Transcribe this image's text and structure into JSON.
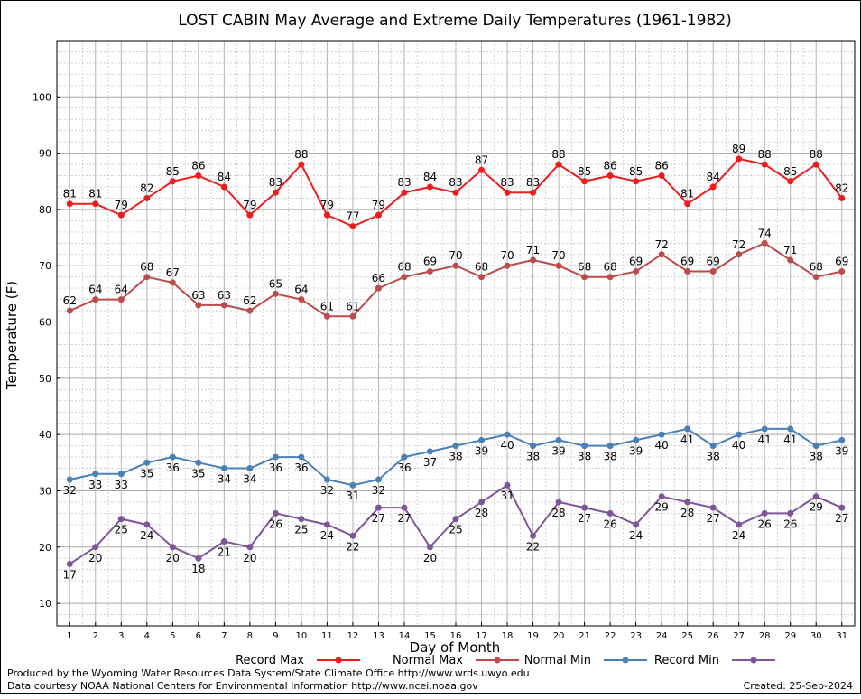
{
  "chart_data": {
    "type": "line",
    "title": "LOST CABIN May Average and Extreme Daily Temperatures (1961-1982)",
    "xlabel": "Day of Month",
    "ylabel": "Temperature (F)",
    "xlim": [
      0.5,
      31.5
    ],
    "ylim": [
      6,
      110
    ],
    "y_ticks": [
      10,
      20,
      30,
      40,
      50,
      60,
      70,
      80,
      90,
      100
    ],
    "x": [
      1,
      2,
      3,
      4,
      5,
      6,
      7,
      8,
      9,
      10,
      11,
      12,
      13,
      14,
      15,
      16,
      17,
      18,
      19,
      20,
      21,
      22,
      23,
      24,
      25,
      26,
      27,
      28,
      29,
      30,
      31
    ],
    "grid": true,
    "legend_position": "bottom",
    "series": [
      {
        "name": "Record Max",
        "color": "#ee1c1c",
        "label_pos": "above",
        "values": [
          81,
          81,
          79,
          82,
          85,
          86,
          84,
          79,
          83,
          88,
          79,
          77,
          79,
          83,
          84,
          83,
          87,
          83,
          83,
          88,
          85,
          86,
          85,
          86,
          81,
          84,
          89,
          88,
          85,
          88,
          82
        ]
      },
      {
        "name": "Normal Max",
        "color": "#bc4b4b",
        "label_pos": "above",
        "values": [
          62,
          64,
          64,
          68,
          67,
          63,
          63,
          62,
          65,
          64,
          61,
          61,
          66,
          68,
          69,
          70,
          68,
          70,
          71,
          70,
          68,
          68,
          69,
          72,
          69,
          69,
          72,
          74,
          71,
          68,
          69
        ]
      },
      {
        "name": "Normal Min",
        "color": "#4a80b8",
        "label_pos": "below",
        "values": [
          32,
          33,
          33,
          35,
          36,
          35,
          34,
          34,
          36,
          36,
          32,
          31,
          32,
          36,
          37,
          38,
          39,
          40,
          38,
          39,
          38,
          38,
          39,
          40,
          41,
          38,
          40,
          41,
          41,
          38,
          39
        ]
      },
      {
        "name": "Record Min",
        "color": "#7e559a",
        "label_pos": "below",
        "values": [
          17,
          20,
          25,
          24,
          20,
          18,
          21,
          20,
          26,
          25,
          24,
          22,
          27,
          27,
          20,
          25,
          28,
          31,
          22,
          28,
          27,
          26,
          24,
          29,
          28,
          27,
          24,
          26,
          26,
          29,
          27
        ]
      }
    ]
  },
  "footer": {
    "producer": "Produced by the Wyoming Water Resources Data System/State Climate Office http://www.wrds.uwyo.edu",
    "courtesy": "Data courtesy NOAA National Centers for Environmental Information http://www.ncei.noaa.gov",
    "created": "Created:  25-Sep-2024"
  }
}
